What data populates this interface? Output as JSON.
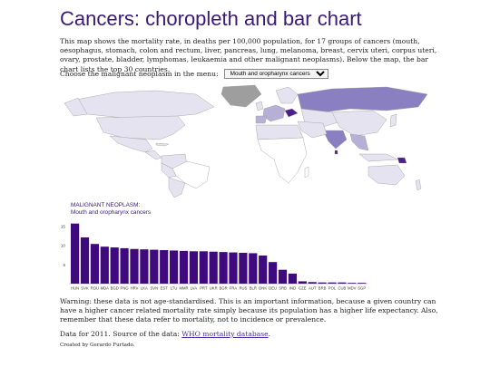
{
  "page": {
    "title": "Cancers: choropleth and bar chart",
    "intro": "This map shows the mortality rate, in deaths per 100,000 population, for 17 groups of cancers (mouth, oesophagus, stomach, colon and rectum, liver, pancreas, lung, melanoma, breast, cervix uteri, corpus uteri, ovary, prostate, bladder, lymphomas, leukaemia and other malignant neoplasms). Below the map, the bar chart lists the top 30 countries.",
    "menu_label": "Choose the malignant neoplasm in the menu:",
    "selected_option": "Mouth and oropharynx cancers",
    "warning": "Warning: these data is not age-standardised. This is an important information, because a given country can have a higher cancer related mortality rate simply because its population has a higher life expectancy. Also, remember that these data refer to mortality, not to incidence or prevalence.",
    "source_prefix": "Data for 2011. Source of the data: ",
    "source_link": "WHO mortality database",
    "source_suffix": ".",
    "credit": "Created by Gerardo Furtado."
  },
  "colors": {
    "title": "#3a1a78",
    "bar": "#3f0a7e",
    "map_low": "#e6e3f1",
    "map_mid": "#b7b0d6",
    "map_high": "#8a7fc0",
    "map_top": "#4b1f8e",
    "no_data": "#9e9e9e"
  },
  "chart_data": {
    "type": "bar",
    "title": "MALIGNANT NEOPLASM:",
    "subtitle": "Mouth and oropharynx cancers",
    "categories": [
      "HUN",
      "SVK",
      "ROU",
      "MDA",
      "BGD",
      "PNG",
      "HRV",
      "LKA",
      "SVN",
      "EST",
      "LTU",
      "MMR",
      "LVA",
      "PRT",
      "UKR",
      "BGR",
      "FRA",
      "RUS",
      "BLR",
      "DNK",
      "DEU",
      "SRB",
      "IND",
      "CZE",
      "AUT",
      "BRB",
      "POL",
      "CUB",
      "MDV",
      "SGP"
    ],
    "values": [
      15.6,
      12.0,
      10.3,
      9.6,
      9.4,
      9.2,
      9.0,
      8.9,
      8.8,
      8.7,
      8.6,
      8.5,
      8.4,
      8.4,
      8.3,
      8.2,
      8.1,
      8.0,
      7.9,
      7.3,
      5.6,
      3.6,
      2.6,
      0.6,
      0.4,
      0.3,
      0.3,
      0.3,
      0.2,
      0.2
    ],
    "yticks": [
      5,
      10,
      15
    ],
    "ylim": [
      0,
      16
    ]
  }
}
